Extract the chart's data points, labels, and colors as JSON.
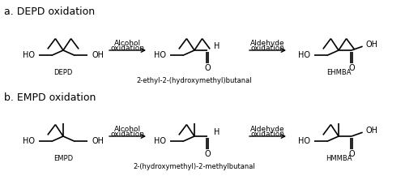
{
  "title_a": "a. DEPD oxidation",
  "title_b": "b. EMPD oxidation",
  "arrow1_label_top": "Alcohol",
  "arrow1_label_bot": "oxidation",
  "arrow2_label_top": "Aldehyde",
  "arrow2_label_bot": "oxidation",
  "label_depd": "DEPD",
  "label_mid_a": "2-ethyl-2-(hydroxymethyl)butanal",
  "label_ehmba": "EHMBA",
  "label_empd": "EMPD",
  "label_mid_b": "2-(hydroxymethyl)-2-methylbutanal",
  "label_hmmba": "HMMBA",
  "bg_color": "#ffffff",
  "text_color": "#000000",
  "line_color": "#000000",
  "fontsize_title": 9,
  "fontsize_label": 7,
  "fontsize_compound_name": 6.0,
  "fontsize_arrow_label": 6.5
}
